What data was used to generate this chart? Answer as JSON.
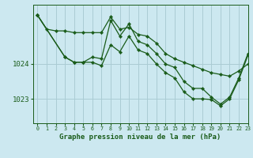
{
  "background_color": "#cce8f0",
  "plot_bg_color": "#cce8f0",
  "grid_color": "#aaccd4",
  "line_color": "#1a5c1a",
  "xlabel": "Graphe pression niveau de la mer (hPa)",
  "xlim": [
    -0.5,
    23
  ],
  "ylim": [
    1022.3,
    1025.7
  ],
  "yticks": [
    1023,
    1024
  ],
  "xticks": [
    0,
    1,
    2,
    3,
    4,
    5,
    6,
    7,
    8,
    9,
    10,
    11,
    12,
    13,
    14,
    15,
    16,
    17,
    18,
    19,
    20,
    21,
    22,
    23
  ],
  "series": [
    {
      "x": [
        0,
        1,
        2,
        3,
        4,
        5,
        6,
        7,
        8,
        9,
        10,
        11,
        12,
        13,
        14,
        15,
        16,
        17,
        18,
        19,
        20,
        21,
        22,
        23
      ],
      "y": [
        1025.4,
        1025.0,
        1024.95,
        1024.95,
        1024.9,
        1024.9,
        1024.9,
        1024.9,
        1025.35,
        1025.0,
        1025.05,
        1024.85,
        1024.8,
        1024.6,
        1024.3,
        1024.15,
        1024.05,
        1023.95,
        1023.85,
        1023.75,
        1023.7,
        1023.65,
        1023.8,
        1024.0
      ]
    },
    {
      "x": [
        0,
        3,
        4,
        5,
        6,
        7,
        8,
        9,
        10,
        11,
        12,
        13,
        14,
        15,
        16,
        17,
        18,
        19,
        20,
        21,
        22,
        23
      ],
      "y": [
        1025.4,
        1024.2,
        1024.05,
        1024.05,
        1024.2,
        1024.15,
        1025.25,
        1024.8,
        1025.15,
        1024.65,
        1024.55,
        1024.3,
        1024.0,
        1023.9,
        1023.5,
        1023.3,
        1023.3,
        1023.05,
        1022.85,
        1023.05,
        1023.6,
        1024.3
      ]
    },
    {
      "x": [
        0,
        3,
        4,
        5,
        6,
        7,
        8,
        9,
        10,
        11,
        12,
        13,
        14,
        15,
        16,
        17,
        18,
        19,
        20,
        21,
        22,
        23
      ],
      "y": [
        1025.4,
        1024.2,
        1024.05,
        1024.05,
        1024.05,
        1023.95,
        1024.55,
        1024.35,
        1024.8,
        1024.4,
        1024.3,
        1024.0,
        1023.75,
        1023.6,
        1023.2,
        1023.0,
        1023.0,
        1022.98,
        1022.8,
        1023.0,
        1023.55,
        1024.25
      ]
    }
  ]
}
